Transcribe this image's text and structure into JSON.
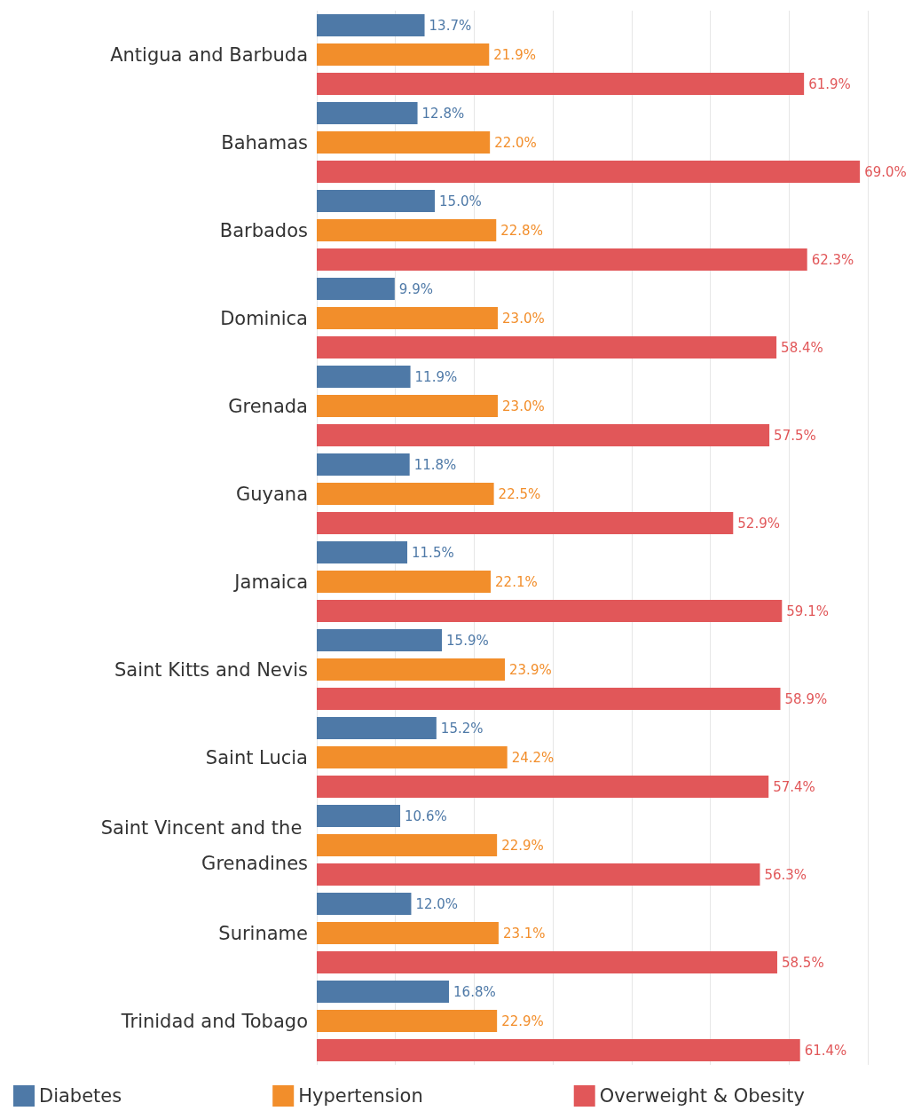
{
  "chart_data": {
    "type": "bar",
    "orientation": "horizontal",
    "categories": [
      "Antigua and Barbuda",
      "Bahamas",
      "Barbados",
      "Dominica",
      "Grenada",
      "Guyana",
      "Jamaica",
      "Saint Kitts and Nevis",
      "Saint Lucia",
      "Saint Vincent and the Grenadines",
      "Suriname",
      "Trinidad and Tobago"
    ],
    "series": [
      {
        "name": "Diabetes",
        "color": "#4e79a7",
        "values": [
          13.7,
          12.8,
          15.0,
          9.9,
          11.9,
          11.8,
          11.5,
          15.9,
          15.2,
          10.6,
          12.0,
          16.8
        ],
        "value_labels": [
          "13.7%",
          "12.8%",
          "15.0%",
          "9.9%",
          "11.9%",
          "11.8%",
          "11.5%",
          "15.9%",
          "15.2%",
          "10.6%",
          "12.0%",
          "16.8%"
        ]
      },
      {
        "name": "Hypertension",
        "color": "#f28e2b",
        "values": [
          21.9,
          22.0,
          22.8,
          23.0,
          23.0,
          22.5,
          22.1,
          23.9,
          24.2,
          22.9,
          23.1,
          22.9
        ],
        "value_labels": [
          "21.9%",
          "22.0%",
          "22.8%",
          "23.0%",
          "23.0%",
          "22.5%",
          "22.1%",
          "23.9%",
          "24.2%",
          "22.9%",
          "23.1%",
          "22.9%"
        ]
      },
      {
        "name": "Overweight & Obesity",
        "color": "#e15759",
        "values": [
          61.9,
          69.0,
          62.3,
          58.4,
          57.5,
          52.9,
          59.1,
          58.9,
          57.4,
          56.3,
          58.5,
          61.4
        ],
        "value_labels": [
          "61.9%",
          "69.0%",
          "62.3%",
          "58.4%",
          "57.5%",
          "52.9%",
          "59.1%",
          "58.9%",
          "57.4%",
          "56.3%",
          "58.5%",
          "61.4%"
        ]
      }
    ],
    "xlim": [
      0,
      70
    ],
    "xticks": [
      {
        "value": 0,
        "label": null
      },
      {
        "value": 10,
        "label": null
      },
      {
        "value": 20,
        "label": null
      },
      {
        "value": 30,
        "label": null
      },
      {
        "value": 40,
        "label": null
      },
      {
        "value": 50,
        "label": null
      },
      {
        "value": 60,
        "label": null
      },
      {
        "value": 70,
        "label": null
      }
    ],
    "grid": "x",
    "legend": "bottom",
    "tick_labels": "y"
  }
}
